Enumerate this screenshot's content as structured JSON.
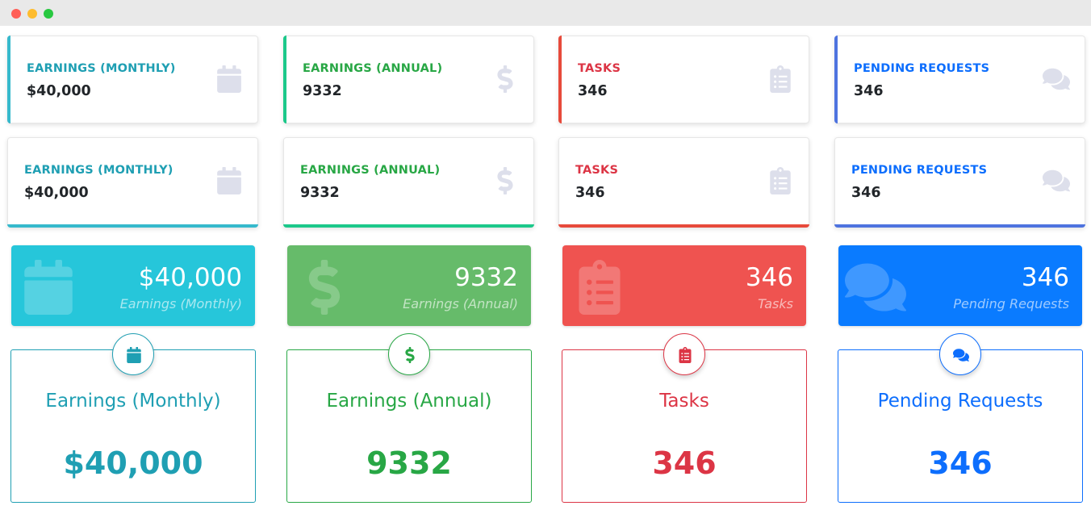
{
  "window": {
    "controls": [
      "close",
      "minimize",
      "maximize"
    ]
  },
  "colors": {
    "teal": "#1f9fb3",
    "green": "#28a745",
    "red": "#dc3545",
    "blue": "#0d6efd",
    "teal_bg": "#26c6da",
    "green_bg": "#66bb6a",
    "red_bg": "#ef5350",
    "blue_bg": "#0a7bff",
    "icon_muted": "#dddfeb"
  },
  "row_left_border": [
    {
      "label": "EARNINGS (MONTHLY)",
      "value": "$40,000",
      "icon": "calendar-icon"
    },
    {
      "label": "EARNINGS (ANNUAL)",
      "value": "9332",
      "icon": "dollar-icon"
    },
    {
      "label": "TASKS",
      "value": "346",
      "icon": "clipboard-icon"
    },
    {
      "label": "PENDING REQUESTS",
      "value": "346",
      "icon": "comments-icon"
    }
  ],
  "row_bottom_border": [
    {
      "label": "EARNINGS (MONTHLY)",
      "value": "$40,000",
      "icon": "calendar-icon"
    },
    {
      "label": "EARNINGS (ANNUAL)",
      "value": "9332",
      "icon": "dollar-icon"
    },
    {
      "label": "TASKS",
      "value": "346",
      "icon": "clipboard-icon"
    },
    {
      "label": "PENDING REQUESTS",
      "value": "346",
      "icon": "comments-icon"
    }
  ],
  "row_filled": [
    {
      "value": "$40,000",
      "label": "Earnings (Monthly)",
      "icon": "calendar-icon"
    },
    {
      "value": "9332",
      "label": "Earnings (Annual)",
      "icon": "dollar-icon"
    },
    {
      "value": "346",
      "label": "Tasks",
      "icon": "clipboard-icon"
    },
    {
      "value": "346",
      "label": "Pending Requests",
      "icon": "comments-icon"
    }
  ],
  "row_outlined": [
    {
      "title": "Earnings (Monthly)",
      "value": "$40,000",
      "icon": "calendar-icon"
    },
    {
      "title": "Earnings (Annual)",
      "value": "9332",
      "icon": "dollar-icon"
    },
    {
      "title": "Tasks",
      "value": "346",
      "icon": "clipboard-icon"
    },
    {
      "title": "Pending Requests",
      "value": "346",
      "icon": "comments-icon"
    }
  ]
}
